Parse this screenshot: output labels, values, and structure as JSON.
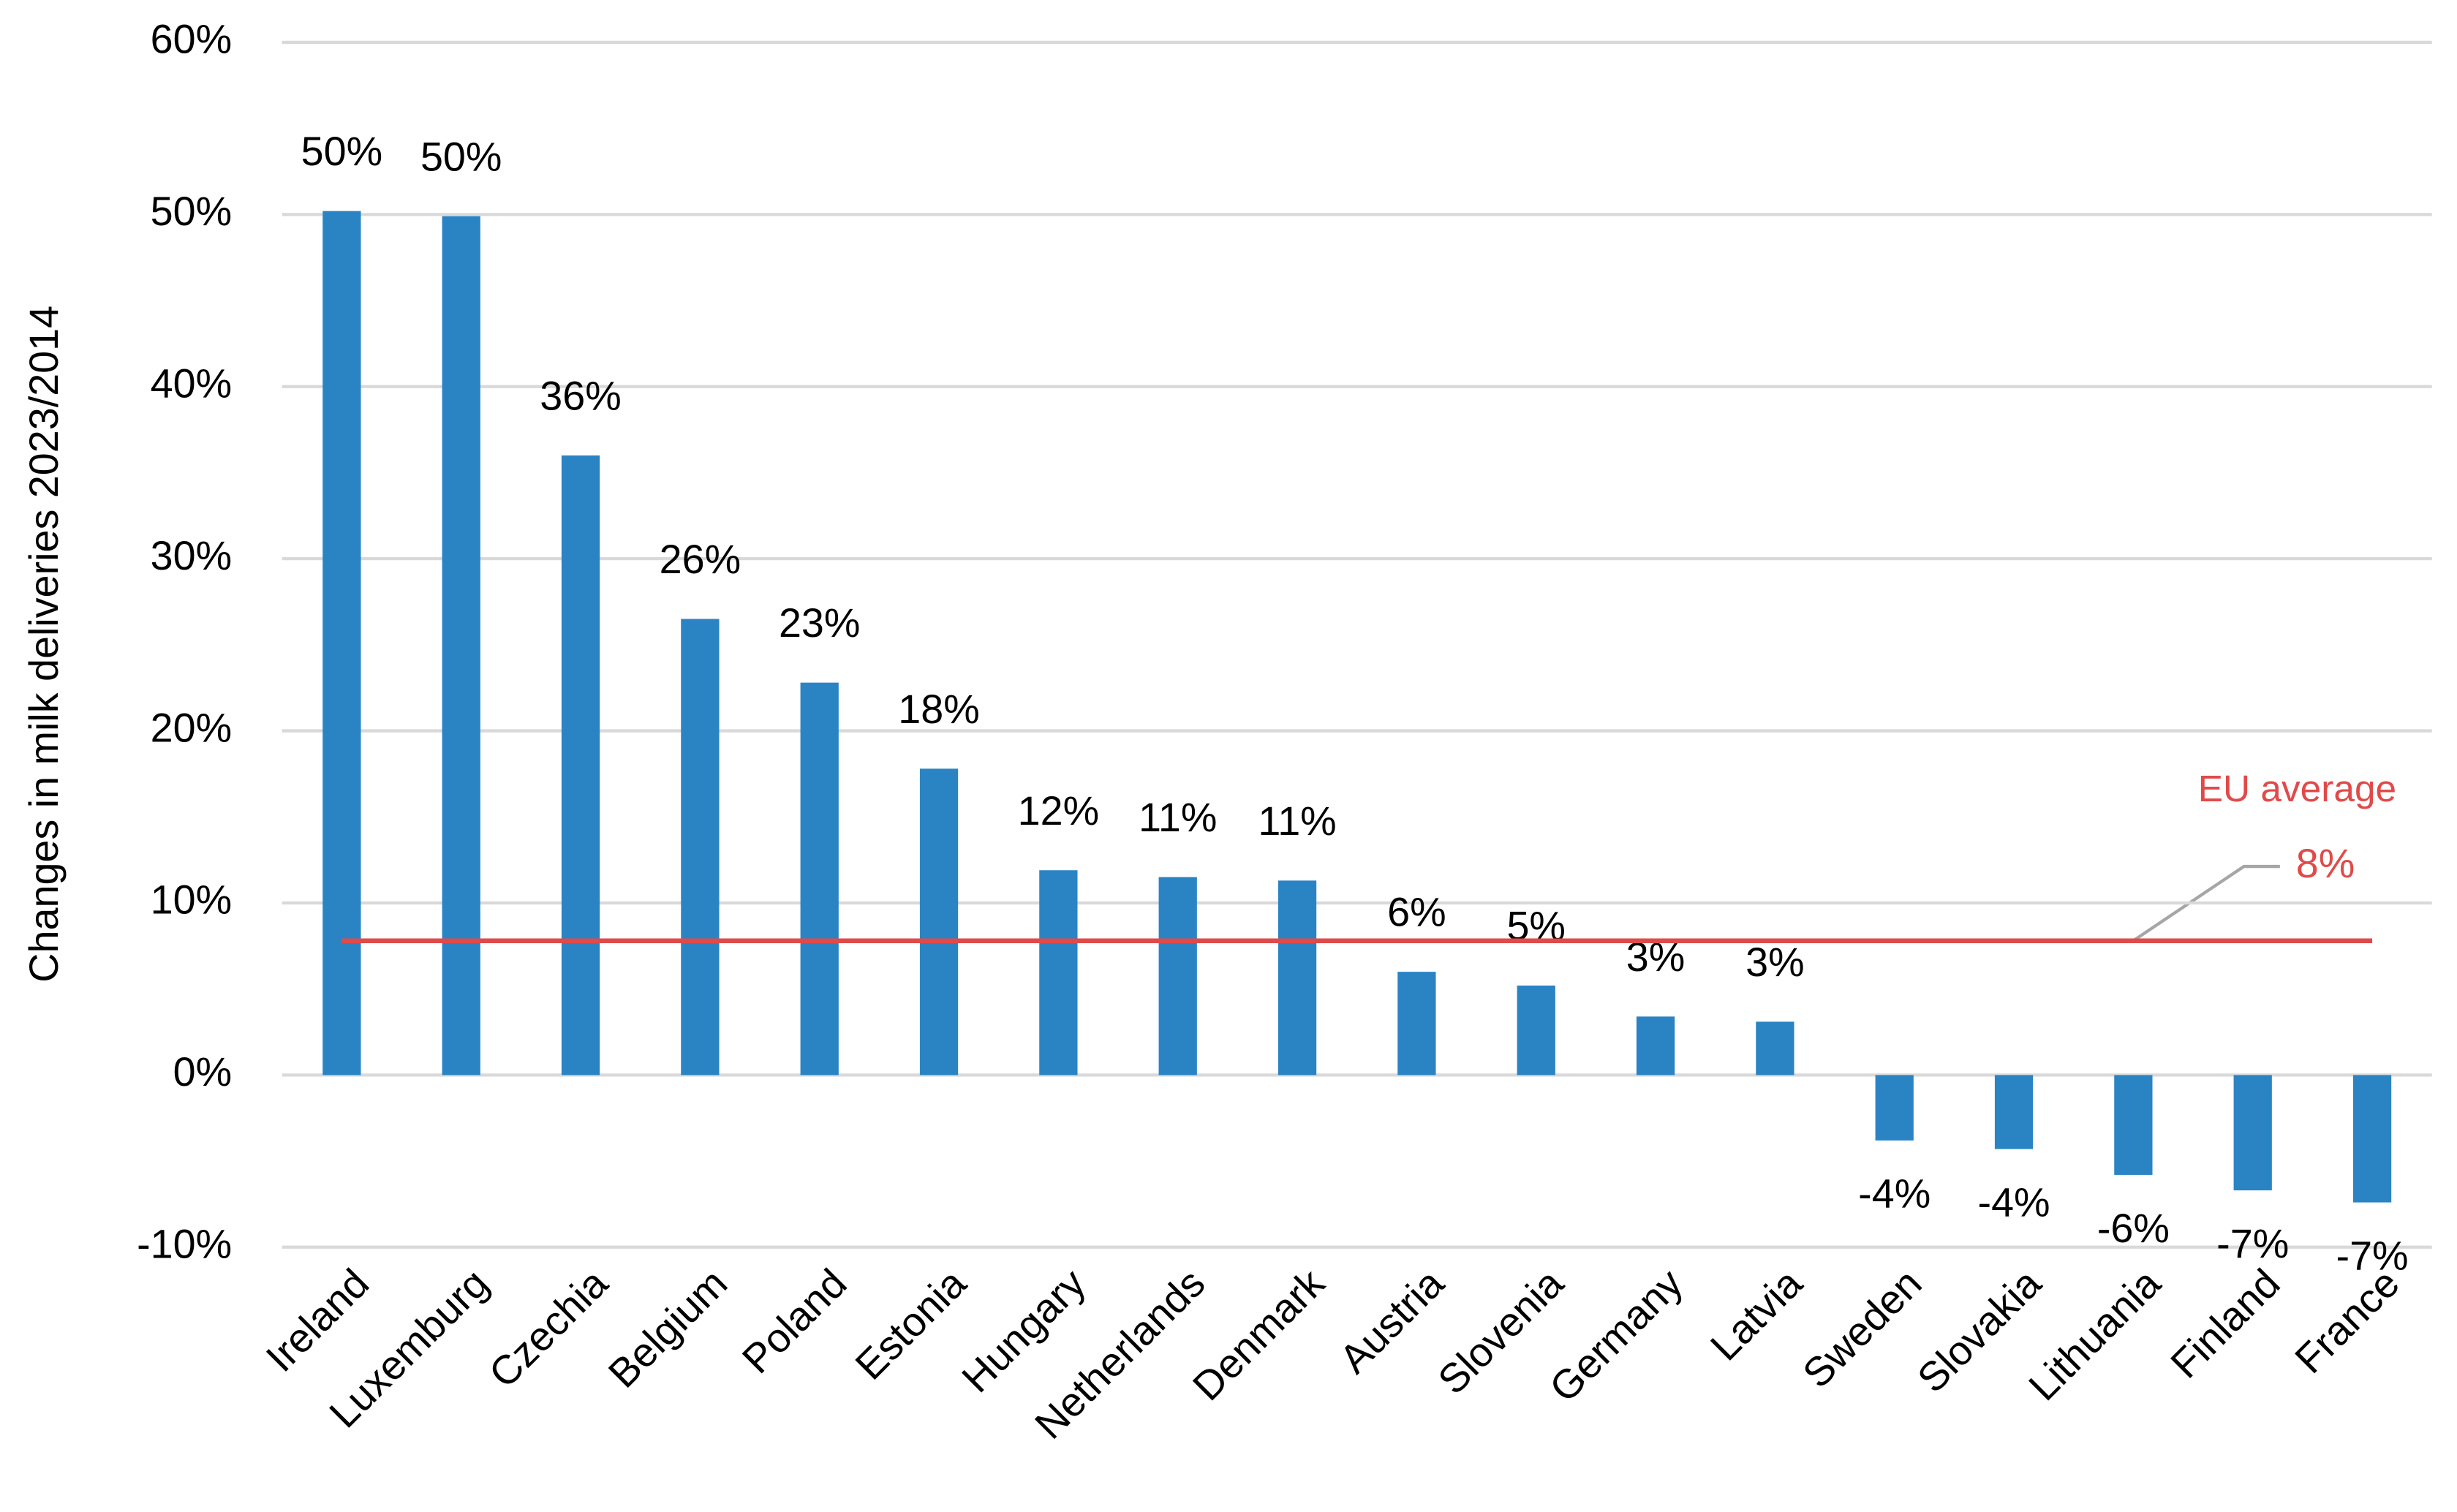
{
  "chart_data": {
    "type": "bar",
    "y_label": "Changes in milk deliveries 2023/2014",
    "categories": [
      "Ireland",
      "Luxemburg",
      "Czechia",
      "Belgium",
      "Poland",
      "Estonia",
      "Hungary",
      "Netherlands",
      "Denmark",
      "Austria",
      "Slovenia",
      "Germany",
      "Latvia",
      "Sweden",
      "Slovakia",
      "Lithuania",
      "Finland",
      "France"
    ],
    "values": [
      50.2,
      49.9,
      36.0,
      26.5,
      22.8,
      17.8,
      11.9,
      11.5,
      11.3,
      6.0,
      5.2,
      3.4,
      3.1,
      -3.8,
      -4.3,
      -5.8,
      -6.7,
      -7.4
    ],
    "value_labels": [
      "50%",
      "50%",
      "36%",
      "26%",
      "23%",
      "18%",
      "12%",
      "11%",
      "11%",
      "6%",
      "5%",
      "3%",
      "3%",
      "-4%",
      "-4%",
      "-6%",
      "-7%",
      "-7%"
    ],
    "color": "#2a84c4",
    "average": {
      "name": "EU average",
      "value": 7.8,
      "value_label": "8%",
      "color": "#e04a4a"
    },
    "ylim": [
      -10,
      60
    ],
    "yticks": [
      {
        "value": -10,
        "label": "-10%"
      },
      {
        "value": 0,
        "label": "0%"
      },
      {
        "value": 10,
        "label": "10%"
      },
      {
        "value": 20,
        "label": "20%"
      },
      {
        "value": 30,
        "label": "30%"
      },
      {
        "value": 40,
        "label": "40%"
      },
      {
        "value": 50,
        "label": "50%"
      },
      {
        "value": 60,
        "label": "60%"
      }
    ],
    "grid": true
  }
}
